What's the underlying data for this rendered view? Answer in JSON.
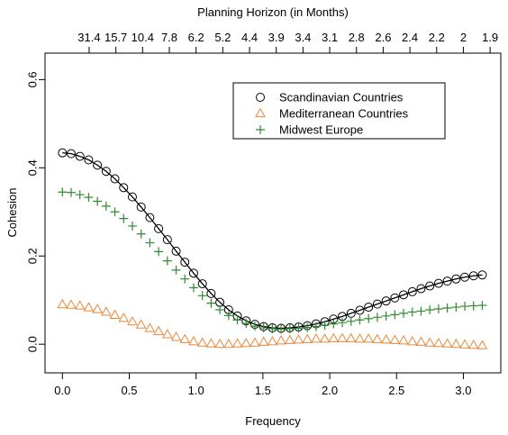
{
  "chart_data": {
    "type": "scatter",
    "title": "",
    "top_axis_label": "Planning Horizon (in Months)",
    "xlabel": "Frequency",
    "ylabel": "Cohesion",
    "xlim": [
      -0.13,
      3.28
    ],
    "ylim": [
      -0.065,
      0.66
    ],
    "x_ticks": [
      "0.0",
      "0.5",
      "1.0",
      "1.5",
      "2.0",
      "2.5",
      "3.0"
    ],
    "x_tick_values": [
      0,
      0.5,
      1.0,
      1.5,
      2.0,
      2.5,
      3.0
    ],
    "y_ticks": [
      "0.0",
      "0.2",
      "0.4",
      "0.6"
    ],
    "y_tick_values": [
      0,
      0.2,
      0.4,
      0.6
    ],
    "top_ticks": [
      "31.4",
      "15.7",
      "10.4",
      "7.8",
      "6.2",
      "5.2",
      "4.4",
      "3.9",
      "3.4",
      "3.1",
      "2.8",
      "2.6",
      "2.4",
      "2.2",
      "2",
      "1.9"
    ],
    "top_tick_values": [
      0.2,
      0.4,
      0.6,
      0.8,
      1.0,
      1.2,
      1.4,
      1.6,
      1.8,
      2.0,
      2.2,
      2.4,
      2.6,
      2.8,
      3.0,
      3.2
    ],
    "legend_position": "top-right",
    "legend": [
      {
        "label": "Scandinavian Countries",
        "marker": "circle",
        "color": "#000000"
      },
      {
        "label": "Mediterranean Countries",
        "marker": "triangle",
        "color": "#E8883A"
      },
      {
        "label": "Midwest Europe",
        "marker": "plus",
        "color": "#2E8B2E"
      }
    ],
    "x": [
      0.0,
      0.0654,
      0.1309,
      0.1963,
      0.2618,
      0.3272,
      0.3927,
      0.4581,
      0.5236,
      0.589,
      0.6545,
      0.7199,
      0.7854,
      0.8508,
      0.9163,
      0.9817,
      1.0472,
      1.1126,
      1.1781,
      1.2435,
      1.309,
      1.3744,
      1.4399,
      1.5053,
      1.5708,
      1.6362,
      1.7017,
      1.7671,
      1.8326,
      1.898,
      1.9635,
      2.0289,
      2.0944,
      2.1598,
      2.2253,
      2.2907,
      2.3562,
      2.4216,
      2.4871,
      2.5525,
      2.618,
      2.6834,
      2.7489,
      2.8143,
      2.8798,
      2.9452,
      3.0107,
      3.0761,
      3.1416
    ],
    "series": [
      {
        "name": "Scandinavian Countries",
        "marker": "circle",
        "color": "#000000",
        "line": true,
        "values": [
          0.434,
          0.432,
          0.426,
          0.418,
          0.406,
          0.392,
          0.375,
          0.355,
          0.334,
          0.311,
          0.287,
          0.262,
          0.237,
          0.211,
          0.186,
          0.161,
          0.137,
          0.115,
          0.095,
          0.078,
          0.064,
          0.053,
          0.045,
          0.04,
          0.037,
          0.036,
          0.037,
          0.039,
          0.042,
          0.046,
          0.051,
          0.057,
          0.063,
          0.07,
          0.077,
          0.084,
          0.091,
          0.098,
          0.105,
          0.112,
          0.119,
          0.126,
          0.132,
          0.138,
          0.143,
          0.148,
          0.152,
          0.155,
          0.157
        ]
      },
      {
        "name": "Mediterranean Countries",
        "marker": "triangle",
        "color": "#E8883A",
        "line": false,
        "values": [
          0.09,
          0.089,
          0.087,
          0.083,
          0.079,
          0.073,
          0.066,
          0.059,
          0.051,
          0.044,
          0.036,
          0.029,
          0.022,
          0.016,
          0.011,
          0.006,
          0.003,
          0.001,
          0.0,
          0.0,
          0.001,
          0.002,
          0.003,
          0.005,
          0.006,
          0.008,
          0.009,
          0.01,
          0.011,
          0.012,
          0.012,
          0.013,
          0.013,
          0.013,
          0.012,
          0.012,
          0.011,
          0.01,
          0.009,
          0.008,
          0.006,
          0.005,
          0.003,
          0.002,
          0.001,
          0.0,
          -0.001,
          -0.002,
          -0.003
        ]
      },
      {
        "name": "Midwest Europe",
        "marker": "plus",
        "color": "#2E8B2E",
        "line": false,
        "values": [
          0.345,
          0.344,
          0.339,
          0.333,
          0.324,
          0.313,
          0.3,
          0.285,
          0.268,
          0.25,
          0.23,
          0.21,
          0.189,
          0.168,
          0.148,
          0.128,
          0.11,
          0.093,
          0.078,
          0.065,
          0.055,
          0.047,
          0.041,
          0.037,
          0.035,
          0.034,
          0.035,
          0.036,
          0.038,
          0.04,
          0.043,
          0.046,
          0.049,
          0.052,
          0.055,
          0.058,
          0.061,
          0.064,
          0.067,
          0.07,
          0.073,
          0.075,
          0.078,
          0.08,
          0.082,
          0.084,
          0.086,
          0.087,
          0.088
        ]
      }
    ]
  }
}
